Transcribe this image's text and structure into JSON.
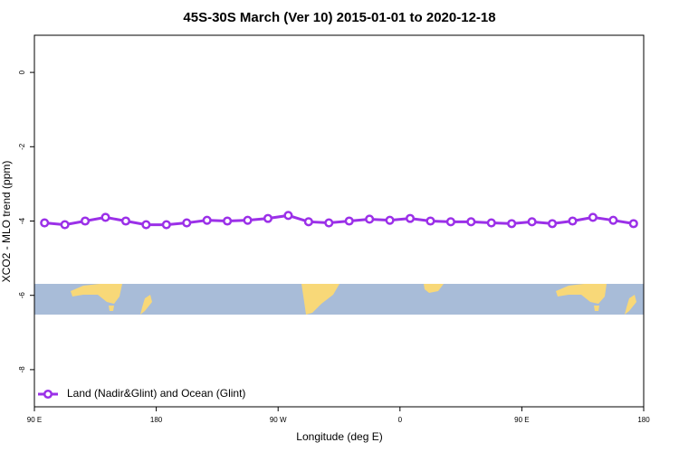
{
  "chart_data": {
    "type": "line",
    "title": "45S-30S March (Ver 10)   2015-01-01 to 2020-12-18",
    "x_label": "Longitude (deg E)",
    "y_label": "XCO2 - MLO trend (ppm)",
    "x": [
      97.5,
      112.5,
      127.5,
      142.5,
      157.5,
      172.5,
      187.5,
      202.5,
      217.5,
      232.5,
      247.5,
      262.5,
      277.5,
      292.5,
      307.5,
      322.5,
      337.5,
      352.5,
      367.5,
      382.5,
      397.5,
      412.5,
      427.5,
      442.5,
      457.5,
      472.5,
      487.5,
      502.5,
      517.5,
      532.5
    ],
    "series": [
      {
        "name": "Land (Nadir&Glint) and Ocean (Glint)",
        "color": "#9b30e8",
        "values": [
          -4.05,
          -4.1,
          -4.0,
          -3.9,
          -4.0,
          -4.1,
          -4.1,
          -4.05,
          -3.98,
          -4.0,
          -3.98,
          -3.93,
          -3.85,
          -4.02,
          -4.05,
          -4.0,
          -3.95,
          -3.98,
          -3.93,
          -4.0,
          -4.02,
          -4.02,
          -4.05,
          -4.07,
          -4.02,
          -4.07,
          -4.0,
          -3.9,
          -3.98,
          -4.07
        ]
      }
    ],
    "xlim": [
      90,
      540
    ],
    "xticks": [
      {
        "value": 90,
        "label": "90 E"
      },
      {
        "value": 180,
        "label": "180"
      },
      {
        "value": 270,
        "label": "90 W"
      },
      {
        "value": 360,
        "label": "0"
      },
      {
        "value": 450,
        "label": "90 E"
      },
      {
        "value": 540,
        "label": "180"
      }
    ],
    "ylim": [
      -9,
      1
    ],
    "yticks": [
      0,
      -2,
      -4,
      -6,
      -8
    ],
    "legend": "bottom-left"
  }
}
